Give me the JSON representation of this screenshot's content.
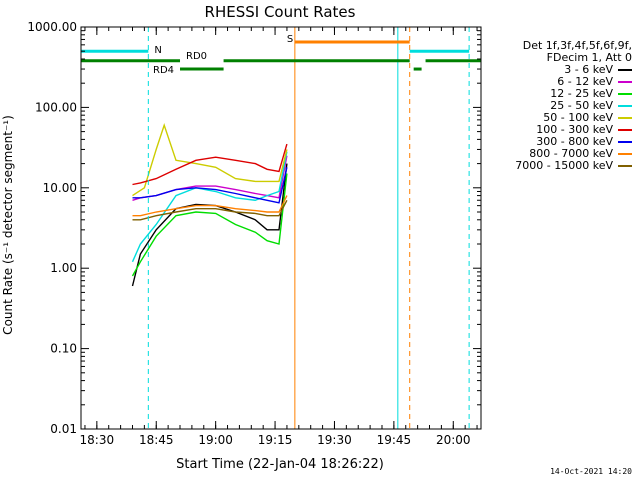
{
  "chart_data": {
    "type": "line",
    "title": "RHESSI Count Rates",
    "xlabel": "Start Time (22-Jan-04 18:26:22)",
    "ylabel": "Count Rate (s⁻¹ detector segment⁻¹)",
    "ylog": true,
    "ylim": [
      0.01,
      1000
    ],
    "xlim": [
      "18:26",
      "20:07"
    ],
    "x_ticks": [
      "18:30",
      "18:45",
      "19:00",
      "19:15",
      "19:30",
      "19:45",
      "20:00"
    ],
    "y_ticks": [
      "0.01",
      "0.10",
      "1.00",
      "10.00",
      "100.00",
      "1000.00"
    ],
    "legend_header": [
      "Det 1f,3f,4f,5f,6f,9f,",
      "FDecim 1, Att 0"
    ],
    "series": [
      {
        "name": "3 - 6 keV",
        "color": "#000000",
        "x": [
          "18:39",
          "18:41",
          "18:45",
          "18:50",
          "18:55",
          "19:00",
          "19:05",
          "19:10",
          "19:13",
          "19:16",
          "19:18"
        ],
        "y": [
          0.6,
          1.5,
          3.0,
          5.5,
          6.2,
          6.0,
          5.0,
          4.0,
          3.0,
          3.0,
          20
        ]
      },
      {
        "name": "6 - 12 keV",
        "color": "#cc00cc",
        "x": [
          "18:39",
          "18:41",
          "18:45",
          "18:50",
          "18:55",
          "19:00",
          "19:05",
          "19:10",
          "19:13",
          "19:16",
          "19:18"
        ],
        "y": [
          7.0,
          7.5,
          8.0,
          9.5,
          10.5,
          10.5,
          9.5,
          8.5,
          8.0,
          7.5,
          25
        ]
      },
      {
        "name": "12 - 25 keV",
        "color": "#00dd00",
        "x": [
          "18:39",
          "18:41",
          "18:45",
          "18:50",
          "18:55",
          "19:00",
          "19:05",
          "19:10",
          "19:13",
          "19:16",
          "19:18"
        ],
        "y": [
          0.8,
          1.2,
          2.5,
          4.5,
          5.0,
          4.8,
          3.5,
          2.8,
          2.2,
          2.0,
          15
        ]
      },
      {
        "name": "25 - 50 keV",
        "color": "#00dddd",
        "x": [
          "18:39",
          "18:41",
          "18:45",
          "18:50",
          "18:55",
          "19:00",
          "19:05",
          "19:10",
          "19:13",
          "19:16",
          "19:18"
        ],
        "y": [
          1.2,
          2.0,
          3.5,
          8.0,
          10.0,
          9.0,
          7.5,
          7.0,
          8.0,
          9.0,
          28
        ]
      },
      {
        "name": "50 - 100 keV",
        "color": "#cccc00",
        "x": [
          "18:39",
          "18:42",
          "18:45",
          "18:47",
          "18:50",
          "18:55",
          "19:00",
          "19:05",
          "19:10",
          "19:13",
          "19:16",
          "19:18"
        ],
        "y": [
          8.0,
          10.0,
          30.0,
          60.0,
          22.0,
          20.0,
          18.0,
          13.0,
          12.0,
          12.0,
          12.0,
          30
        ]
      },
      {
        "name": "100 - 300 keV",
        "color": "#dd0000",
        "x": [
          "18:39",
          "18:41",
          "18:45",
          "18:50",
          "18:55",
          "19:00",
          "19:05",
          "19:10",
          "19:13",
          "19:16",
          "19:18"
        ],
        "y": [
          11.0,
          11.5,
          13.0,
          17.0,
          22.0,
          24.0,
          22.0,
          20.0,
          17.0,
          16.0,
          35
        ]
      },
      {
        "name": "300 - 800 keV",
        "color": "#0000ee",
        "x": [
          "18:39",
          "18:41",
          "18:45",
          "18:50",
          "18:55",
          "19:00",
          "19:05",
          "19:10",
          "19:13",
          "19:16",
          "19:18"
        ],
        "y": [
          7.5,
          7.5,
          8.0,
          9.5,
          10.0,
          9.5,
          8.5,
          7.5,
          7.0,
          6.5,
          18
        ]
      },
      {
        "name": "800 - 7000 keV",
        "color": "#ff8000",
        "x": [
          "18:39",
          "18:41",
          "18:45",
          "18:50",
          "18:55",
          "19:00",
          "19:05",
          "19:10",
          "19:13",
          "19:16",
          "19:18"
        ],
        "y": [
          4.5,
          4.5,
          5.0,
          5.5,
          6.0,
          6.0,
          5.5,
          5.2,
          5.0,
          5.0,
          8
        ]
      },
      {
        "name": "7000 - 15000 keV",
        "color": "#806000",
        "x": [
          "18:39",
          "18:41",
          "18:45",
          "18:50",
          "18:55",
          "19:00",
          "19:05",
          "19:10",
          "19:13",
          "19:16",
          "19:18"
        ],
        "y": [
          4.0,
          4.0,
          4.5,
          5.0,
          5.5,
          5.5,
          5.0,
          4.8,
          4.5,
          4.5,
          7
        ]
      }
    ],
    "event_markers": [
      {
        "label": "N",
        "color": "#00dddd",
        "value": 500,
        "from": "18:26",
        "to": "18:43"
      },
      {
        "label": "",
        "color": "#00dddd",
        "value": 500,
        "from": "19:49",
        "to": "20:04"
      },
      {
        "label": "S",
        "color": "#ff8000",
        "value": 650,
        "from": "19:20",
        "to": "19:49"
      },
      {
        "label": "RD4",
        "color": "#008000",
        "value": 380,
        "from": "18:26",
        "to": "18:51"
      },
      {
        "label": "RD0",
        "color": "#008000",
        "value": 300,
        "from": "18:51",
        "to": "19:02"
      },
      {
        "label": "",
        "color": "#008000",
        "value": 380,
        "from": "19:02",
        "to": "19:49"
      },
      {
        "label": "",
        "color": "#008000",
        "value": 300,
        "from": "19:50",
        "to": "19:52"
      },
      {
        "label": "",
        "color": "#008000",
        "value": 380,
        "from": "19:53",
        "to": "20:07"
      }
    ],
    "vertical_markers": [
      {
        "time": "18:26",
        "color": "#00dddd",
        "style": "solid"
      },
      {
        "time": "18:43",
        "color": "#00dddd",
        "style": "dashed"
      },
      {
        "time": "19:20",
        "color": "#ff8000",
        "style": "solid"
      },
      {
        "time": "19:46",
        "color": "#00dddd",
        "style": "solid"
      },
      {
        "time": "19:49",
        "color": "#ff8000",
        "style": "dashed"
      },
      {
        "time": "20:04",
        "color": "#00dddd",
        "style": "dashed"
      }
    ]
  },
  "footer": "14-Oct-2021 14:20"
}
